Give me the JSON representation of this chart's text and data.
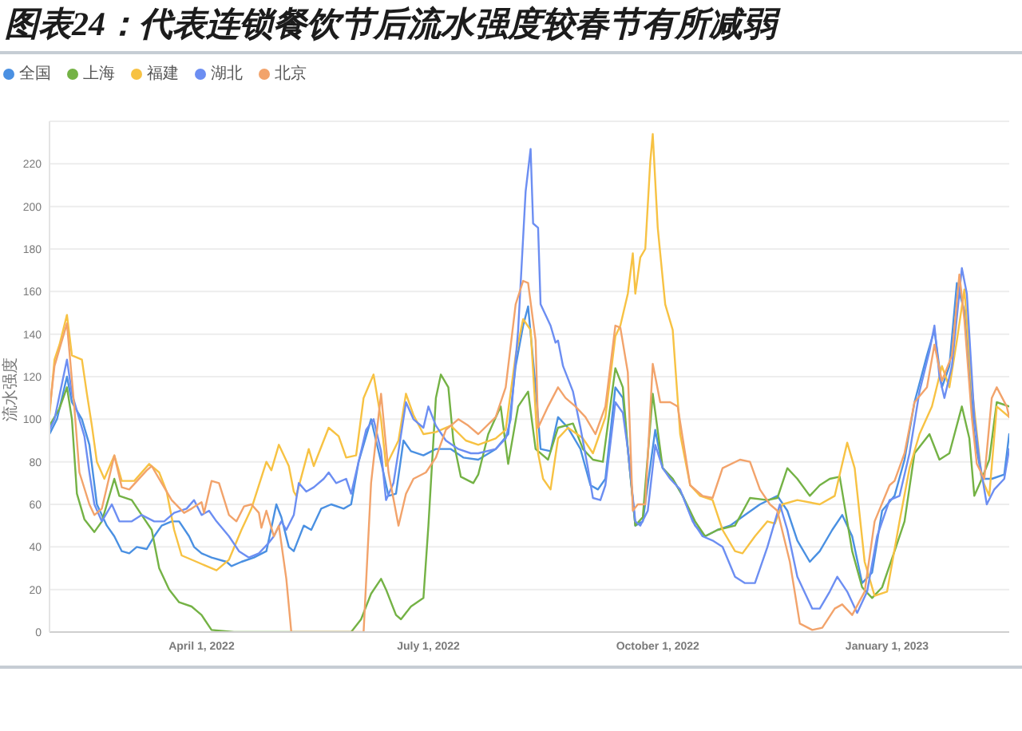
{
  "chart_data": {
    "type": "line",
    "title": "图表24：代表连锁餐饮节后流水强度较春节有所减弱",
    "ylabel": "流水强度",
    "xlim": [
      "2022-01-30",
      "2023-02-19"
    ],
    "xticks": [
      {
        "value": "2022-04-01",
        "label": "April 1, 2022"
      },
      {
        "value": "2022-07-01",
        "label": "July 1, 2022"
      },
      {
        "value": "2022-10-01",
        "label": "October 1, 2022"
      },
      {
        "value": "2023-01-01",
        "label": "January 1, 2023"
      }
    ],
    "ylim": [
      0,
      240
    ],
    "yticks": [
      0,
      20,
      40,
      60,
      80,
      100,
      120,
      140,
      160,
      180,
      200,
      220
    ],
    "grid": "y",
    "legend": "top left",
    "series": [
      {
        "name": "全国",
        "color": "#4a90e2",
        "x": [
          "2022-01-30",
          "2022-02-02",
          "2022-02-06",
          "2022-02-08",
          "2022-02-12",
          "2022-02-15",
          "2022-02-18",
          "2022-02-22",
          "2022-02-25",
          "2022-02-28",
          "2022-03-03",
          "2022-03-06",
          "2022-03-10",
          "2022-03-13",
          "2022-03-16",
          "2022-03-20",
          "2022-03-23",
          "2022-03-27",
          "2022-03-29",
          "2022-04-01",
          "2022-04-05",
          "2022-04-11",
          "2022-04-13",
          "2022-04-17",
          "2022-04-22",
          "2022-04-27",
          "2022-05-01",
          "2022-05-03",
          "2022-05-06",
          "2022-05-08",
          "2022-05-12",
          "2022-05-15",
          "2022-05-19",
          "2022-05-23",
          "2022-05-28",
          "2022-05-31",
          "2022-06-03",
          "2022-06-08",
          "2022-06-12",
          "2022-06-15",
          "2022-06-18",
          "2022-06-21",
          "2022-06-24",
          "2022-06-29",
          "2022-07-04",
          "2022-07-10",
          "2022-07-15",
          "2022-07-21",
          "2022-07-28",
          "2022-08-02",
          "2022-08-05",
          "2022-08-08",
          "2022-08-10",
          "2022-08-13",
          "2022-08-15",
          "2022-08-19",
          "2022-08-22",
          "2022-08-26",
          "2022-08-31",
          "2022-09-04",
          "2022-09-07",
          "2022-09-10",
          "2022-09-14",
          "2022-09-17",
          "2022-09-19",
          "2022-09-22",
          "2022-09-25",
          "2022-09-30",
          "2022-10-03",
          "2022-10-07",
          "2022-10-11",
          "2022-10-16",
          "2022-10-20",
          "2022-10-25",
          "2022-10-30",
          "2022-11-05",
          "2022-11-11",
          "2022-11-18",
          "2022-11-22",
          "2022-11-26",
          "2022-12-01",
          "2022-12-05",
          "2022-12-10",
          "2022-12-14",
          "2022-12-18",
          "2022-12-22",
          "2022-12-26",
          "2022-12-30",
          "2023-01-04",
          "2023-01-08",
          "2023-01-12",
          "2023-01-17",
          "2023-01-20",
          "2023-01-23",
          "2023-01-26",
          "2023-01-29",
          "2023-02-01",
          "2023-02-05",
          "2023-02-08",
          "2023-02-12",
          "2023-02-17",
          "2023-02-19"
        ],
        "values": [
          93,
          100,
          120,
          108,
          100,
          88,
          60,
          50,
          45,
          38,
          37,
          40,
          39,
          45,
          50,
          52,
          52,
          45,
          40,
          37,
          35,
          33,
          31,
          33,
          35,
          38,
          60,
          54,
          40,
          38,
          50,
          48,
          58,
          60,
          58,
          60,
          80,
          100,
          80,
          64,
          65,
          90,
          85,
          83,
          86,
          86,
          82,
          81,
          86,
          93,
          125,
          144,
          153,
          115,
          86,
          85,
          101,
          96,
          86,
          69,
          67,
          72,
          115,
          110,
          86,
          50,
          52,
          95,
          77,
          72,
          64,
          50,
          45,
          48,
          50,
          55,
          60,
          64,
          57,
          43,
          33,
          38,
          48,
          55,
          45,
          23,
          28,
          57,
          64,
          81,
          108,
          130,
          142,
          115,
          125,
          164,
          151,
          93,
          72,
          72,
          74,
          93
        ]
      },
      {
        "name": "上海",
        "color": "#74b245",
        "x": [
          "2022-01-30",
          "2022-02-03",
          "2022-02-06",
          "2022-02-08",
          "2022-02-10",
          "2022-02-13",
          "2022-02-17",
          "2022-02-20",
          "2022-02-25",
          "2022-02-27",
          "2022-03-04",
          "2022-03-08",
          "2022-03-12",
          "2022-03-15",
          "2022-03-19",
          "2022-03-23",
          "2022-03-28",
          "2022-04-01",
          "2022-04-05",
          "2022-04-14",
          "2022-05-31",
          "2022-06-04",
          "2022-06-08",
          "2022-06-12",
          "2022-06-14",
          "2022-06-18",
          "2022-06-20",
          "2022-06-24",
          "2022-06-29",
          "2022-07-01",
          "2022-07-04",
          "2022-07-06",
          "2022-07-09",
          "2022-07-11",
          "2022-07-14",
          "2022-07-19",
          "2022-07-21",
          "2022-07-25",
          "2022-07-30",
          "2022-08-02",
          "2022-08-06",
          "2022-08-10",
          "2022-08-13",
          "2022-08-18",
          "2022-08-22",
          "2022-08-28",
          "2022-09-01",
          "2022-09-05",
          "2022-09-09",
          "2022-09-14",
          "2022-09-17",
          "2022-09-19",
          "2022-09-22",
          "2022-09-25",
          "2022-09-29",
          "2022-10-03",
          "2022-10-07",
          "2022-10-11",
          "2022-10-16",
          "2022-10-20",
          "2022-10-25",
          "2022-11-01",
          "2022-11-07",
          "2022-11-14",
          "2022-11-18",
          "2022-11-22",
          "2022-11-26",
          "2022-12-01",
          "2022-12-05",
          "2022-12-09",
          "2022-12-13",
          "2022-12-18",
          "2022-12-22",
          "2022-12-26",
          "2022-12-30",
          "2023-01-04",
          "2023-01-08",
          "2023-01-12",
          "2023-01-18",
          "2023-01-22",
          "2023-01-26",
          "2023-01-31",
          "2023-02-03",
          "2023-02-05",
          "2023-02-08",
          "2023-02-11",
          "2023-02-14",
          "2023-02-19"
        ],
        "values": [
          97,
          105,
          115,
          100,
          65,
          53,
          47,
          52,
          72,
          64,
          62,
          55,
          48,
          30,
          20,
          14,
          12,
          8,
          1,
          0,
          0,
          6,
          18,
          25,
          20,
          8,
          6,
          12,
          16,
          50,
          110,
          121,
          115,
          90,
          73,
          70,
          74,
          93,
          106,
          79,
          106,
          113,
          86,
          81,
          96,
          98,
          86,
          81,
          80,
          124,
          115,
          86,
          50,
          54,
          112,
          77,
          72,
          64,
          52,
          45,
          48,
          50,
          63,
          62,
          63,
          77,
          72,
          64,
          69,
          72,
          73,
          38,
          21,
          16,
          21,
          38,
          52,
          84,
          93,
          81,
          84,
          106,
          91,
          64,
          72,
          81,
          108,
          106
        ]
      },
      {
        "name": "福建",
        "color": "#f7c243",
        "x": [
          "2022-01-30",
          "2022-02-01",
          "2022-02-03",
          "2022-02-06",
          "2022-02-08",
          "2022-02-12",
          "2022-02-14",
          "2022-02-16",
          "2022-02-18",
          "2022-02-21",
          "2022-02-25",
          "2022-02-28",
          "2022-03-05",
          "2022-03-11",
          "2022-03-15",
          "2022-03-18",
          "2022-03-21",
          "2022-03-24",
          "2022-03-30",
          "2022-04-03",
          "2022-04-07",
          "2022-04-12",
          "2022-04-17",
          "2022-04-21",
          "2022-04-27",
          "2022-04-29",
          "2022-05-02",
          "2022-05-06",
          "2022-05-08",
          "2022-05-09",
          "2022-05-14",
          "2022-05-16",
          "2022-05-22",
          "2022-05-26",
          "2022-05-29",
          "2022-06-02",
          "2022-06-05",
          "2022-06-09",
          "2022-06-12",
          "2022-06-14",
          "2022-06-19",
          "2022-06-22",
          "2022-06-25",
          "2022-06-29",
          "2022-07-04",
          "2022-07-10",
          "2022-07-16",
          "2022-07-21",
          "2022-07-28",
          "2022-08-01",
          "2022-08-05",
          "2022-08-08",
          "2022-08-11",
          "2022-08-14",
          "2022-08-16",
          "2022-08-19",
          "2022-08-22",
          "2022-08-26",
          "2022-09-01",
          "2022-09-05",
          "2022-09-10",
          "2022-09-14",
          "2022-09-16",
          "2022-09-19",
          "2022-09-21",
          "2022-09-22",
          "2022-09-24",
          "2022-09-26",
          "2022-09-28",
          "2022-09-29",
          "2022-10-01",
          "2022-10-04",
          "2022-10-07",
          "2022-10-10",
          "2022-10-14",
          "2022-10-18",
          "2022-10-23",
          "2022-10-27",
          "2022-11-01",
          "2022-11-04",
          "2022-11-09",
          "2022-11-14",
          "2022-11-17",
          "2022-11-20",
          "2022-11-26",
          "2022-12-05",
          "2022-12-11",
          "2022-12-16",
          "2022-12-19",
          "2022-12-23",
          "2022-12-27",
          "2023-01-01",
          "2023-01-06",
          "2023-01-10",
          "2023-01-14",
          "2023-01-19",
          "2023-01-23",
          "2023-01-26",
          "2023-01-29",
          "2023-02-01",
          "2023-02-04",
          "2023-02-08",
          "2023-02-11",
          "2023-02-14",
          "2023-02-19"
        ],
        "values": [
          102,
          128,
          135,
          149,
          130,
          128,
          112,
          97,
          80,
          72,
          83,
          71,
          71,
          79,
          75,
          66,
          48,
          36,
          33,
          31,
          29,
          34,
          48,
          58,
          80,
          76,
          88,
          78,
          66,
          64,
          86,
          78,
          96,
          92,
          82,
          83,
          110,
          121,
          100,
          78,
          90,
          112,
          102,
          93,
          94,
          97,
          90,
          88,
          91,
          95,
          130,
          147,
          142,
          84,
          72,
          67,
          91,
          96,
          91,
          84,
          101,
          139,
          144,
          159,
          178,
          159,
          176,
          180,
          221,
          234,
          190,
          154,
          142,
          93,
          69,
          64,
          62,
          48,
          38,
          37,
          45,
          52,
          51,
          60,
          62,
          60,
          64,
          89,
          77,
          33,
          17,
          19,
          52,
          77,
          93,
          106,
          125,
          115,
          137,
          161,
          115,
          72,
          64,
          106,
          101
        ]
      },
      {
        "name": "湖北",
        "color": "#6c8ef2",
        "x": [
          "2022-01-30",
          "2022-02-01",
          "2022-02-06",
          "2022-02-08",
          "2022-02-11",
          "2022-02-13",
          "2022-02-15",
          "2022-02-17",
          "2022-02-20",
          "2022-02-24",
          "2022-02-27",
          "2022-03-04",
          "2022-03-08",
          "2022-03-13",
          "2022-03-17",
          "2022-03-21",
          "2022-03-26",
          "2022-03-29",
          "2022-04-01",
          "2022-04-04",
          "2022-04-07",
          "2022-04-12",
          "2022-04-16",
          "2022-04-20",
          "2022-04-24",
          "2022-04-28",
          "2022-04-30",
          "2022-05-03",
          "2022-05-05",
          "2022-05-08",
          "2022-05-10",
          "2022-05-13",
          "2022-05-16",
          "2022-05-20",
          "2022-05-22",
          "2022-05-25",
          "2022-05-29",
          "2022-05-31",
          "2022-06-02",
          "2022-06-06",
          "2022-06-09",
          "2022-06-12",
          "2022-06-14",
          "2022-06-17",
          "2022-06-19",
          "2022-06-22",
          "2022-06-25",
          "2022-06-29",
          "2022-07-01",
          "2022-07-04",
          "2022-07-08",
          "2022-07-13",
          "2022-07-18",
          "2022-07-21",
          "2022-07-28",
          "2022-08-01",
          "2022-08-03",
          "2022-08-06",
          "2022-08-09",
          "2022-08-11",
          "2022-08-12",
          "2022-08-14",
          "2022-08-15",
          "2022-08-19",
          "2022-08-21",
          "2022-08-22",
          "2022-08-24",
          "2022-08-28",
          "2022-08-31",
          "2022-09-03",
          "2022-09-05",
          "2022-09-08",
          "2022-09-10",
          "2022-09-14",
          "2022-09-17",
          "2022-09-19",
          "2022-09-22",
          "2022-09-24",
          "2022-09-27",
          "2022-09-30",
          "2022-10-03",
          "2022-10-06",
          "2022-10-10",
          "2022-10-15",
          "2022-10-19",
          "2022-10-23",
          "2022-10-27",
          "2022-11-01",
          "2022-11-05",
          "2022-11-09",
          "2022-11-14",
          "2022-11-17",
          "2022-11-19",
          "2022-11-22",
          "2022-11-26",
          "2022-12-02",
          "2022-12-05",
          "2022-12-09",
          "2022-12-12",
          "2022-12-16",
          "2022-12-20",
          "2022-12-24",
          "2022-12-28",
          "2023-01-02",
          "2023-01-06",
          "2023-01-10",
          "2023-01-14",
          "2023-01-18",
          "2023-01-20",
          "2023-01-22",
          "2023-01-24",
          "2023-01-27",
          "2023-01-31",
          "2023-02-02",
          "2023-02-05",
          "2023-02-07",
          "2023-02-10",
          "2023-02-13",
          "2023-02-17",
          "2023-02-19"
        ],
        "values": [
          95,
          100,
          128,
          112,
          100,
          92,
          75,
          60,
          52,
          60,
          52,
          52,
          55,
          52,
          52,
          56,
          58,
          62,
          55,
          57,
          52,
          45,
          38,
          35,
          37,
          42,
          45,
          52,
          48,
          55,
          70,
          66,
          68,
          72,
          75,
          70,
          72,
          65,
          75,
          95,
          100,
          85,
          62,
          70,
          85,
          108,
          100,
          96,
          106,
          97,
          90,
          86,
          84,
          84,
          86,
          91,
          100,
          142,
          207,
          227,
          192,
          190,
          154,
          144,
          136,
          137,
          125,
          113,
          96,
          77,
          63,
          62,
          69,
          108,
          103,
          86,
          52,
          50,
          57,
          88,
          77,
          72,
          67,
          52,
          45,
          43,
          40,
          26,
          23,
          23,
          40,
          52,
          60,
          48,
          26,
          11,
          11,
          19,
          26,
          19,
          9,
          19,
          45,
          62,
          64,
          84,
          113,
          132,
          144,
          120,
          110,
          125,
          171,
          159,
          101,
          81,
          60,
          67,
          72,
          86
        ]
      },
      {
        "name": "北京",
        "color": "#f2a36b",
        "x": [
          "2022-01-30",
          "2022-02-01",
          "2022-02-06",
          "2022-02-09",
          "2022-02-11",
          "2022-02-15",
          "2022-02-17",
          "2022-02-20",
          "2022-02-25",
          "2022-02-28",
          "2022-03-03",
          "2022-03-10",
          "2022-03-12",
          "2022-03-16",
          "2022-03-20",
          "2022-03-25",
          "2022-03-28",
          "2022-04-01",
          "2022-04-02",
          "2022-04-05",
          "2022-04-08",
          "2022-04-12",
          "2022-04-15",
          "2022-04-18",
          "2022-04-21",
          "2022-04-24",
          "2022-04-25",
          "2022-04-27",
          "2022-04-30",
          "2022-05-02",
          "2022-05-05",
          "2022-05-07",
          "2022-06-05",
          "2022-06-08",
          "2022-06-12",
          "2022-06-15",
          "2022-06-19",
          "2022-06-22",
          "2022-06-25",
          "2022-06-30",
          "2022-07-04",
          "2022-07-08",
          "2022-07-13",
          "2022-07-17",
          "2022-07-21",
          "2022-07-28",
          "2022-08-01",
          "2022-08-05",
          "2022-08-08",
          "2022-08-10",
          "2022-08-13",
          "2022-08-14",
          "2022-08-18",
          "2022-08-22",
          "2022-08-25",
          "2022-08-29",
          "2022-09-02",
          "2022-09-06",
          "2022-09-10",
          "2022-09-14",
          "2022-09-16",
          "2022-09-19",
          "2022-09-21",
          "2022-09-23",
          "2022-09-26",
          "2022-09-29",
          "2022-10-02",
          "2022-10-06",
          "2022-10-09",
          "2022-10-14",
          "2022-10-19",
          "2022-10-23",
          "2022-10-27",
          "2022-11-03",
          "2022-11-07",
          "2022-11-11",
          "2022-11-15",
          "2022-11-18",
          "2022-11-23",
          "2022-11-27",
          "2022-12-02",
          "2022-12-06",
          "2022-12-11",
          "2022-12-14",
          "2022-12-18",
          "2022-12-23",
          "2022-12-27",
          "2023-01-02",
          "2023-01-04",
          "2023-01-08",
          "2023-01-12",
          "2023-01-17",
          "2023-01-20",
          "2023-01-23",
          "2023-01-27",
          "2023-01-30",
          "2023-02-01",
          "2023-02-04",
          "2023-02-06",
          "2023-02-09",
          "2023-02-12",
          "2023-02-14",
          "2023-02-18",
          "2023-02-19"
        ],
        "values": [
          104,
          125,
          145,
          105,
          75,
          60,
          55,
          58,
          83,
          68,
          67,
          76,
          78,
          70,
          62,
          56,
          58,
          61,
          56,
          71,
          70,
          55,
          52,
          59,
          60,
          56,
          49,
          57,
          45,
          50,
          25,
          0,
          0,
          70,
          112,
          75,
          50,
          65,
          72,
          75,
          82,
          95,
          100,
          97,
          93,
          101,
          115,
          154,
          165,
          164,
          137,
          96,
          106,
          115,
          110,
          106,
          101,
          93,
          106,
          144,
          143,
          122,
          57,
          60,
          60,
          126,
          108,
          108,
          106,
          69,
          64,
          63,
          77,
          81,
          80,
          67,
          60,
          57,
          33,
          4,
          1,
          2,
          11,
          13,
          8,
          19,
          52,
          69,
          71,
          84,
          108,
          115,
          135,
          118,
          130,
          168,
          147,
          101,
          79,
          72,
          110,
          115,
          106,
          101
        ]
      }
    ]
  }
}
